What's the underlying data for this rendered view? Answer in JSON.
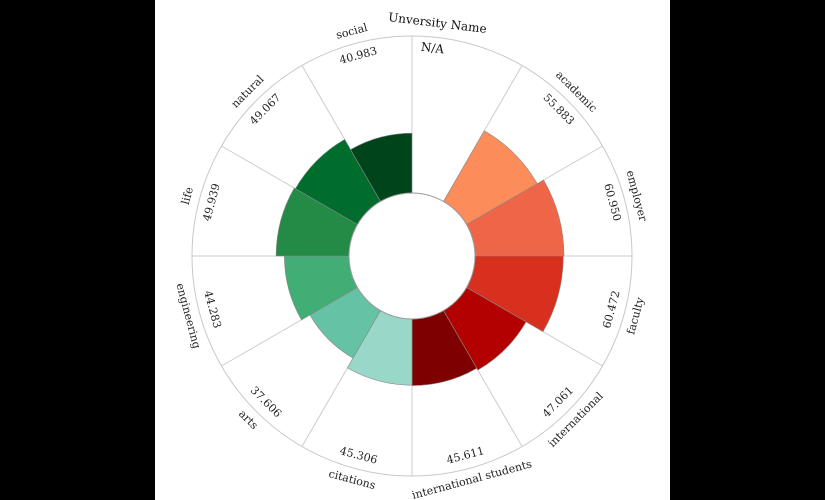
{
  "chart_data": {
    "type": "radial-bar",
    "title": "Unversity Name",
    "title_value": "N/A",
    "segments": [
      {
        "label": "academic",
        "value_label": "55.883",
        "value": 55.883,
        "color": "#fc8c59"
      },
      {
        "label": "employer",
        "value_label": "60.950",
        "value": 60.95,
        "color": "#ef6548"
      },
      {
        "label": "faculty",
        "value_label": "60.472",
        "value": 60.472,
        "color": "#d7301f"
      },
      {
        "label": "international",
        "value_label": "47.061",
        "value": 47.061,
        "color": "#b30000"
      },
      {
        "label": "international students",
        "value_label": "45.611",
        "value": 45.611,
        "color": "#7f0000"
      },
      {
        "label": "citations",
        "value_label": "45.306",
        "value": 45.306,
        "color": "#99d8c9"
      },
      {
        "label": "arts",
        "value_label": "37.606",
        "value": 37.606,
        "color": "#66c2a4"
      },
      {
        "label": "engineering",
        "value_label": "44.283",
        "value": 44.283,
        "color": "#41ae76"
      },
      {
        "label": "life",
        "value_label": "49.939",
        "value": 49.939,
        "color": "#238b45"
      },
      {
        "label": "natural",
        "value_label": "49.067",
        "value": 49.067,
        "color": "#006d2c"
      },
      {
        "label": "social",
        "value_label": "40.983",
        "value": 40.983,
        "color": "#00441b"
      }
    ],
    "value_max": 100
  }
}
